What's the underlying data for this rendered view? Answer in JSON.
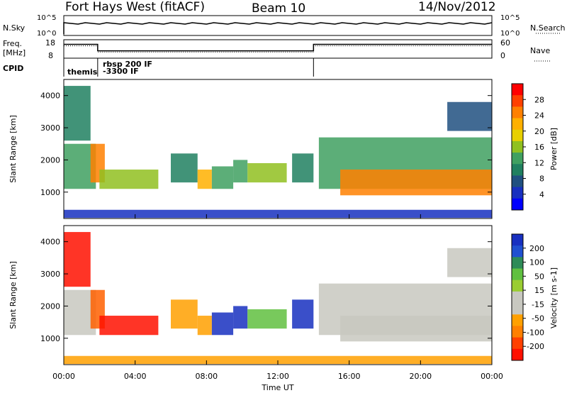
{
  "header": {
    "station": "Fort Hays West (fitACF)",
    "beam": "Beam 10",
    "date": "14/Nov/2012"
  },
  "top_panels": {
    "nsky_label": "N.Sky",
    "nsky_ticks": [
      "10^5",
      "10^0"
    ],
    "nsearch_label": "N.Search",
    "nsearch_ticks": [
      "10^5",
      "10^0"
    ],
    "freq_label_line1": "Freq.",
    "freq_label_line2": "[MHz]",
    "freq_ticks": [
      "18",
      "8"
    ],
    "nave_label": "Nave",
    "nave_ticks": [
      "60",
      "0"
    ],
    "cpid_label": "CPID",
    "cpid_entries": [
      "themis",
      "rbsp 200 IF",
      "-3300 IF"
    ]
  },
  "axes": {
    "xlabel": "Time UT",
    "xticks": [
      "00:00",
      "04:00",
      "08:00",
      "12:00",
      "16:00",
      "20:00",
      "00:00"
    ],
    "ylabel": "Slant Range [km]",
    "yticks": [
      "1000",
      "2000",
      "3000",
      "4000"
    ]
  },
  "colorbars": {
    "power": {
      "label": "Power [dB]",
      "ticks": [
        "28",
        "24",
        "20",
        "16",
        "12",
        "8",
        "4"
      ],
      "colors": [
        "#ff0000",
        "#ff4000",
        "#ff8000",
        "#ffb000",
        "#e8d000",
        "#90c020",
        "#40a060",
        "#208060",
        "#205080",
        "#1830c0",
        "#0000ff"
      ]
    },
    "velocity": {
      "label": "Velocity [m s-1]",
      "ticks": [
        "200",
        "100",
        "50",
        "15",
        "-15",
        "-50",
        "-100",
        "-200"
      ],
      "colors": [
        "#1830c0",
        "#2050d0",
        "#2e8b57",
        "#60c040",
        "#9acd32",
        "#c8c8c0",
        "#c8c8c0",
        "#ffa000",
        "#ff8000",
        "#ff4000",
        "#ff1000"
      ]
    }
  },
  "chart_data": {
    "type": "heatmap",
    "title": "Fort Hays West (fitACF)",
    "xlabel": "Time UT",
    "ylabel": "Slant Range [km]",
    "x_range_hours": [
      0,
      24
    ],
    "y_range_km": [
      180,
      4500
    ],
    "echo_regions": [
      {
        "t_start": 0.0,
        "t_end": 1.8,
        "r_low": 1100,
        "r_high": 2500,
        "power_db": 14,
        "velocity": -15
      },
      {
        "t_start": 0.0,
        "t_end": 1.5,
        "r_low": 2600,
        "r_high": 4300,
        "power_db": 10,
        "velocity": -150
      },
      {
        "t_start": 1.5,
        "t_end": 2.3,
        "r_low": 1300,
        "r_high": 2500,
        "power_db": 24,
        "velocity": -100
      },
      {
        "t_start": 2.0,
        "t_end": 5.3,
        "r_low": 1100,
        "r_high": 1700,
        "power_db": 16,
        "velocity": -200
      },
      {
        "t_start": 6.0,
        "t_end": 7.5,
        "r_low": 1300,
        "r_high": 2200,
        "power_db": 10,
        "velocity": -30
      },
      {
        "t_start": 7.5,
        "t_end": 8.3,
        "r_low": 1100,
        "r_high": 1700,
        "power_db": 22,
        "velocity": -30
      },
      {
        "t_start": 8.3,
        "t_end": 9.5,
        "r_low": 1100,
        "r_high": 1800,
        "power_db": 14,
        "velocity": 200
      },
      {
        "t_start": 9.5,
        "t_end": 10.3,
        "r_low": 1300,
        "r_high": 2000,
        "power_db": 12,
        "velocity": 200
      },
      {
        "t_start": 10.3,
        "t_end": 12.5,
        "r_low": 1300,
        "r_high": 1900,
        "power_db": 16,
        "velocity": 50
      },
      {
        "t_start": 12.8,
        "t_end": 14.0,
        "r_low": 1300,
        "r_high": 2200,
        "power_db": 10,
        "velocity": 150
      },
      {
        "t_start": 14.3,
        "t_end": 24.0,
        "r_low": 1100,
        "r_high": 2700,
        "power_db": 12,
        "velocity": -15
      },
      {
        "t_start": 15.5,
        "t_end": 24.0,
        "r_low": 900,
        "r_high": 1700,
        "power_db": 24,
        "velocity": -15
      },
      {
        "t_start": 21.5,
        "t_end": 24.0,
        "r_low": 2900,
        "r_high": 3800,
        "power_db": 8,
        "velocity": -15
      },
      {
        "t_start": 0.0,
        "t_end": 24.0,
        "r_low": 200,
        "r_high": 450,
        "power_db": 6,
        "velocity": -60
      }
    ],
    "frequency_mhz": [
      {
        "t": 0.0,
        "v": 15.5
      },
      {
        "t": 1.9,
        "v": 15.5
      },
      {
        "t": 1.9,
        "v": 12.0
      },
      {
        "t": 14.0,
        "v": 12.0
      },
      {
        "t": 14.0,
        "v": 15.5
      },
      {
        "t": 24.0,
        "v": 15.5
      }
    ],
    "nave": [
      {
        "t": 0.0,
        "v": 40
      },
      {
        "t": 1.9,
        "v": 40
      },
      {
        "t": 1.9,
        "v": 20
      },
      {
        "t": 14.0,
        "v": 20
      },
      {
        "t": 14.0,
        "v": 40
      },
      {
        "t": 24.0,
        "v": 40
      }
    ],
    "cpid_changes": [
      {
        "t": 0.0,
        "label": "themis"
      },
      {
        "t": 1.9,
        "label": "rbsp 200 IF"
      },
      {
        "t": 14.0,
        "label": ""
      }
    ]
  }
}
